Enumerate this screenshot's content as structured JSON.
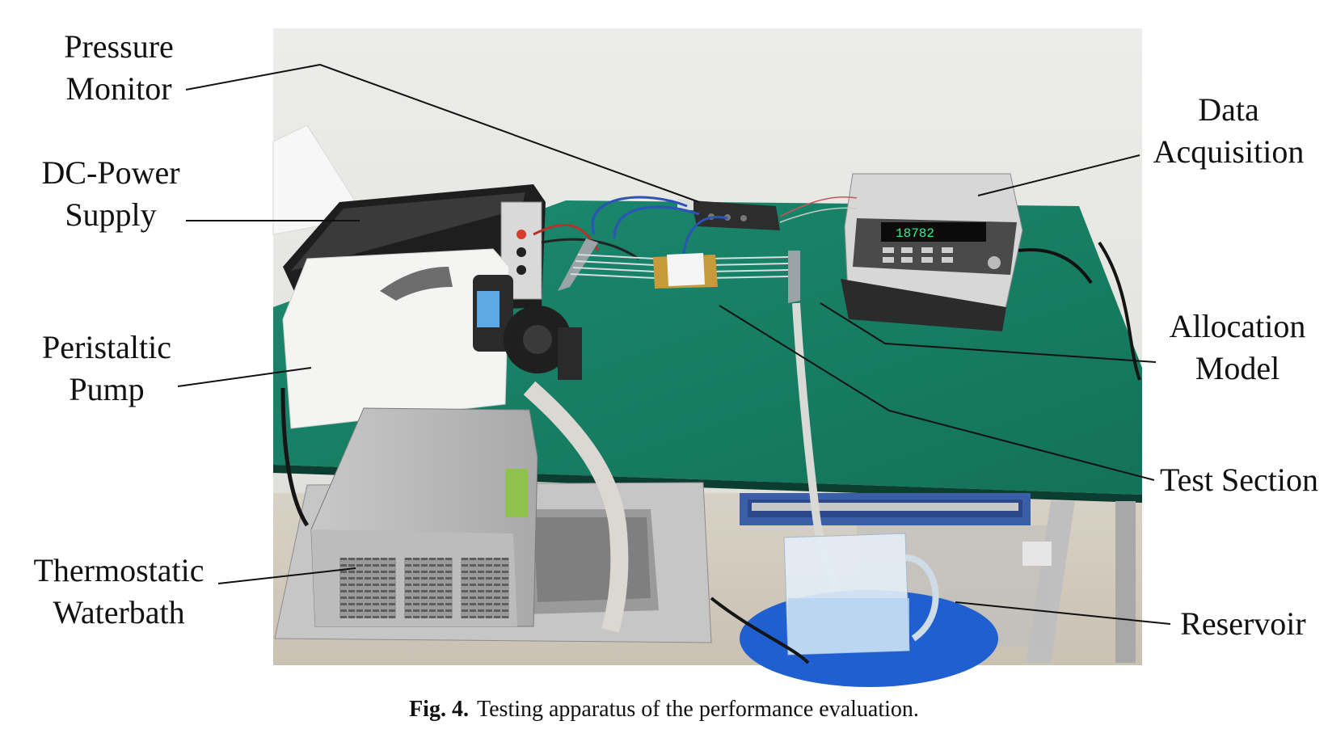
{
  "labels": {
    "pressure_monitor": [
      "Pressure",
      "Monitor"
    ],
    "dc_power_supply": [
      "DC-Power",
      "Supply"
    ],
    "peristaltic_pump": [
      "Peristaltic",
      "Pump"
    ],
    "thermostatic_waterbath": [
      "Thermostatic",
      "Waterbath"
    ],
    "data_acquisition": [
      "Data",
      "Acquisition"
    ],
    "allocation_model": [
      "Allocation",
      "Model"
    ],
    "test_section": "Test Section",
    "reservoir": "Reservoir"
  },
  "display_readout": "18782",
  "caption": {
    "figure_no": "Fig. 4.",
    "text": "Testing apparatus of the performance evaluation."
  }
}
